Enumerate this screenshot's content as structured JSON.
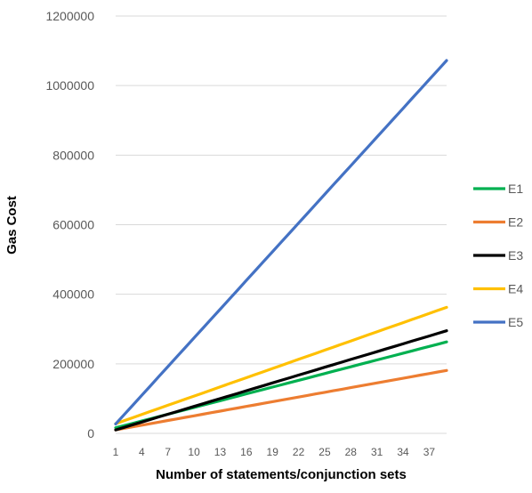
{
  "chart_data": {
    "type": "line",
    "title": "",
    "xlabel": "Number of statements/conjunction sets",
    "ylabel": "Gas Cost",
    "x": [
      1,
      2,
      3,
      4,
      5,
      6,
      7,
      8,
      9,
      10,
      11,
      12,
      13,
      14,
      15,
      16,
      17,
      18,
      19,
      20,
      21,
      22,
      23,
      24,
      25,
      26,
      27,
      28,
      29,
      30,
      31,
      32,
      33,
      34,
      35,
      36,
      37,
      38,
      39
    ],
    "x_tick_labels": [
      "1",
      "4",
      "7",
      "10",
      "13",
      "16",
      "19",
      "22",
      "25",
      "28",
      "31",
      "34",
      "37"
    ],
    "y_tick_labels": [
      "0",
      "200000",
      "400000",
      "600000",
      "800000",
      "1000000",
      "1200000"
    ],
    "ylim": [
      0,
      1200000
    ],
    "grid": true,
    "legend_position": "right",
    "series": [
      {
        "name": "E1",
        "color": "#00B050",
        "values": [
          16000,
          22500,
          29000,
          35500,
          42000,
          48500,
          55000,
          61500,
          68000,
          74500,
          81000,
          87500,
          94000,
          100500,
          107000,
          113500,
          120000,
          126500,
          133000,
          139500,
          146000,
          152500,
          159000,
          165500,
          172000,
          178500,
          185000,
          191500,
          198000,
          204500,
          211000,
          217500,
          224000,
          230500,
          237000,
          243500,
          250000,
          256500,
          263000
        ]
      },
      {
        "name": "E2",
        "color": "#ED7D31",
        "values": [
          10000,
          14500,
          19000,
          23500,
          28000,
          32500,
          37000,
          41500,
          46000,
          50500,
          55000,
          59500,
          64000,
          68500,
          73000,
          77500,
          82000,
          86500,
          91000,
          95500,
          100000,
          104500,
          109000,
          113500,
          118000,
          122500,
          127000,
          131500,
          136000,
          140500,
          145000,
          149500,
          154000,
          158500,
          163000,
          167500,
          172000,
          176500,
          181000
        ]
      },
      {
        "name": "E3",
        "color": "#000000",
        "values": [
          10000,
          17500,
          25000,
          32500,
          40000,
          47500,
          55000,
          62500,
          70000,
          77500,
          85000,
          92500,
          100000,
          107500,
          115000,
          122500,
          130000,
          137500,
          145000,
          152500,
          160000,
          167500,
          175000,
          182500,
          190000,
          197500,
          205000,
          212500,
          220000,
          227500,
          235000,
          242500,
          250000,
          257500,
          265000,
          272500,
          280000,
          287500,
          295000
        ]
      },
      {
        "name": "E4",
        "color": "#FFC000",
        "values": [
          28000,
          36800,
          45600,
          54400,
          63200,
          72000,
          80800,
          89600,
          98400,
          107200,
          116000,
          124800,
          133600,
          142400,
          151200,
          160000,
          168800,
          177600,
          186400,
          195200,
          204000,
          212800,
          221600,
          230400,
          239200,
          248000,
          256800,
          265600,
          274400,
          283200,
          292000,
          300800,
          309600,
          318400,
          327200,
          336000,
          344800,
          353600,
          362400
        ]
      },
      {
        "name": "E5",
        "color": "#4472C4",
        "values": [
          27000,
          54500,
          82000,
          109500,
          137000,
          164500,
          192000,
          219500,
          247000,
          274500,
          302000,
          329500,
          357000,
          384500,
          412000,
          439500,
          467000,
          494500,
          522000,
          549500,
          577000,
          604500,
          632000,
          659500,
          687000,
          714500,
          742000,
          769500,
          797000,
          824500,
          852000,
          879500,
          907000,
          934500,
          962000,
          989500,
          1017000,
          1044500,
          1072000
        ]
      }
    ]
  }
}
